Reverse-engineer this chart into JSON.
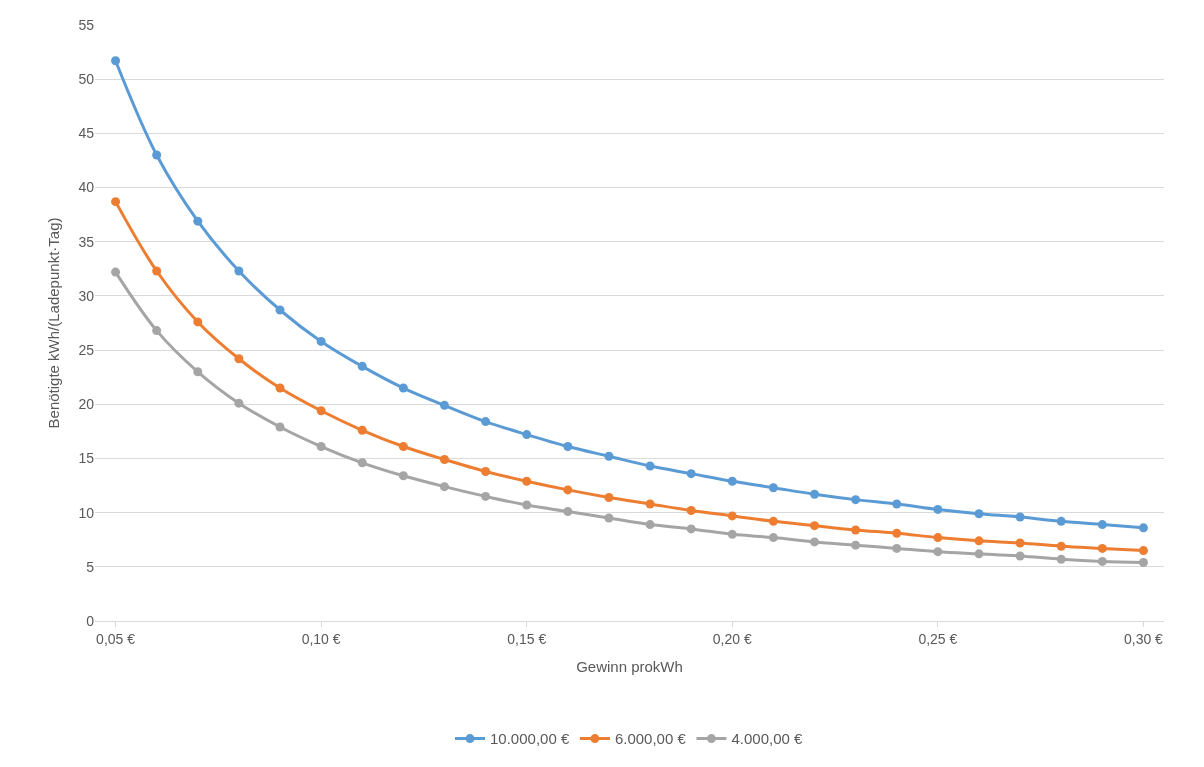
{
  "chart_data": {
    "type": "line",
    "xlabel": "Gewinn prokWh",
    "ylabel": "Benötigte kWh/(Ladepunkt·Tag)",
    "categories": [
      "0,05 €",
      null,
      null,
      null,
      null,
      "0,10 €",
      null,
      null,
      null,
      null,
      "0,15 €",
      null,
      null,
      null,
      null,
      "0,20 €",
      null,
      null,
      null,
      null,
      "0,25 €",
      null,
      null,
      null,
      null,
      "0,30 €"
    ],
    "series": [
      {
        "name": "10.000,00 €",
        "color": "#5b9bd5",
        "values": [
          51.7,
          43.0,
          36.9,
          32.3,
          28.7,
          25.8,
          23.5,
          21.5,
          19.9,
          18.4,
          17.2,
          16.1,
          15.2,
          14.3,
          13.6,
          12.9,
          12.3,
          11.7,
          11.2,
          10.8,
          10.3,
          9.9,
          9.6,
          9.2,
          8.9,
          8.6
        ]
      },
      {
        "name": "6.000,00 €",
        "color": "#ed7d31",
        "values": [
          38.7,
          32.3,
          27.6,
          24.2,
          21.5,
          19.4,
          17.6,
          16.1,
          14.9,
          13.8,
          12.9,
          12.1,
          11.4,
          10.8,
          10.2,
          9.7,
          9.2,
          8.8,
          8.4,
          8.1,
          7.7,
          7.4,
          7.2,
          6.9,
          6.7,
          6.5
        ]
      },
      {
        "name": "4.000,00 €",
        "color": "#a5a5a5",
        "values": [
          32.2,
          26.8,
          23.0,
          20.1,
          17.9,
          16.1,
          14.6,
          13.4,
          12.4,
          11.5,
          10.7,
          10.1,
          9.5,
          8.9,
          8.5,
          8.0,
          7.7,
          7.3,
          7.0,
          6.7,
          6.4,
          6.2,
          6.0,
          5.7,
          5.5,
          5.4
        ]
      }
    ],
    "ylim": [
      0,
      55
    ],
    "yticks": [
      0,
      5,
      10,
      15,
      20,
      25,
      30,
      35,
      40,
      45,
      50,
      55
    ],
    "grid": "y",
    "legend": "bottom",
    "marker": "circle",
    "line_style": "solid"
  }
}
